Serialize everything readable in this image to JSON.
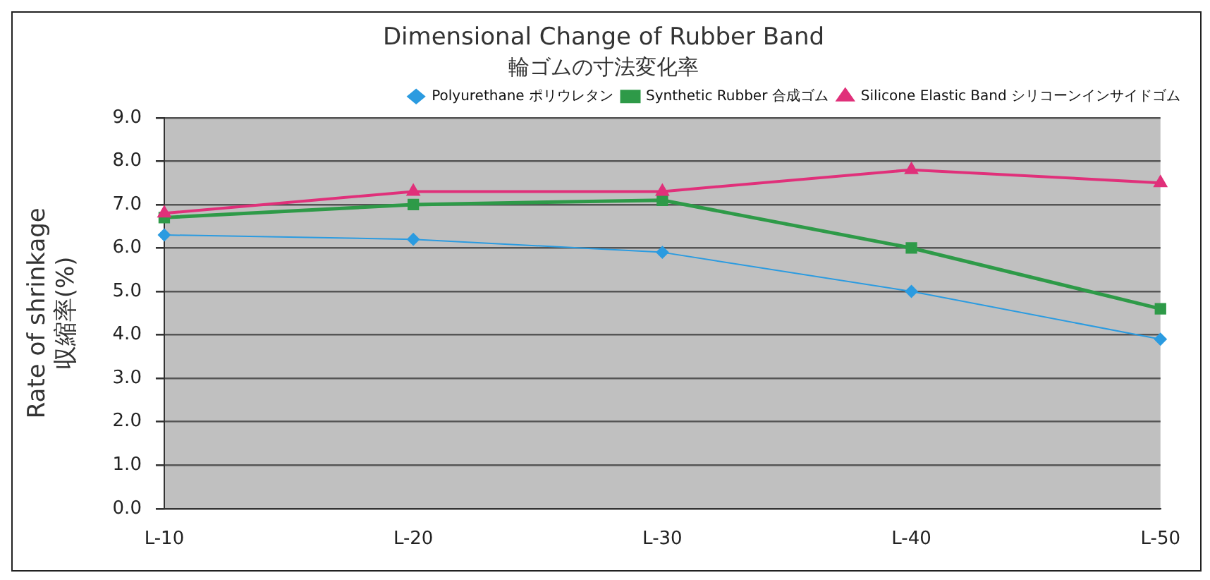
{
  "chart_data": {
    "type": "line",
    "title": "Dimensional Change of Rubber Band",
    "subtitle": "輪ゴムの寸法変化率",
    "ylabel": "Rate of shrinkage\n収縮率(%)",
    "categories": [
      "L-10",
      "L-20",
      "L-30",
      "L-40",
      "L-50"
    ],
    "series": [
      {
        "name": "Polyurethane ポリウレタン",
        "color": "#2b9be0",
        "marker": "diamond",
        "values": [
          6.3,
          6.2,
          5.9,
          5.0,
          3.9
        ]
      },
      {
        "name": "Synthetic Rubber 合成ゴム",
        "color": "#2e9a48",
        "marker": "square",
        "values": [
          6.7,
          7.0,
          7.1,
          6.0,
          4.6
        ]
      },
      {
        "name": "Silicone Elastic Band シリコーンインサイドゴム",
        "color": "#e0307a",
        "marker": "triangle",
        "values": [
          6.8,
          7.3,
          7.3,
          7.8,
          7.5
        ]
      }
    ],
    "ylim": [
      0,
      9
    ],
    "yticks": [
      {
        "value": 0,
        "label": "0.0"
      },
      {
        "value": 1,
        "label": "1.0"
      },
      {
        "value": 2,
        "label": "2.0"
      },
      {
        "value": 3,
        "label": "3.0"
      },
      {
        "value": 4,
        "label": "4.0"
      },
      {
        "value": 5,
        "label": "5.0"
      },
      {
        "value": 6,
        "label": "6.0"
      },
      {
        "value": 7,
        "label": "7.0"
      },
      {
        "value": 8,
        "label": "8.0"
      },
      {
        "value": 9,
        "label": "9.0"
      }
    ],
    "grid": "y",
    "legend": "top right",
    "line_style": "solid"
  }
}
